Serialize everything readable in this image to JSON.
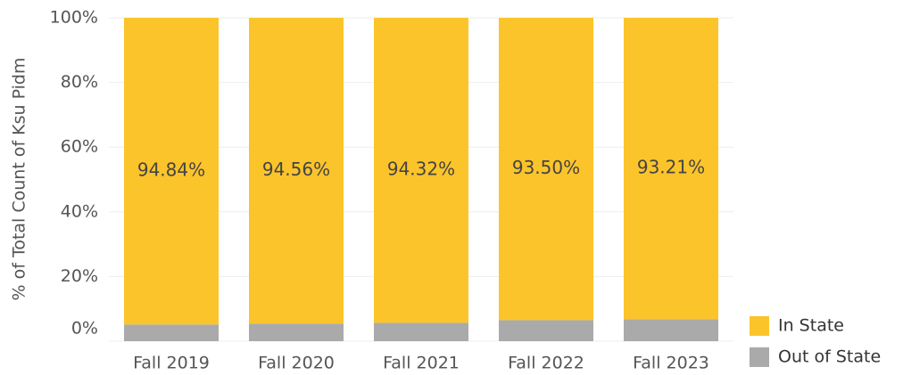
{
  "chart_data": {
    "type": "stacked_bar",
    "y_axis_label": "% of Total Count of Ksu Pidm",
    "categories": [
      "Fall 2019",
      "Fall 2020",
      "Fall 2021",
      "Fall 2022",
      "Fall 2023"
    ],
    "series": [
      {
        "name": "In State",
        "color": "#fcc42b",
        "values": [
          94.84,
          94.56,
          94.32,
          93.5,
          93.21
        ],
        "value_labels": [
          "94.84%",
          "94.56%",
          "94.32%",
          "93.50%",
          "93.21%"
        ]
      },
      {
        "name": "Out of State",
        "color": "#aaaaaa",
        "values": [
          5.16,
          5.44,
          5.68,
          6.5,
          6.79
        ]
      }
    ],
    "ylim": [
      0,
      100
    ],
    "yticks": [
      {
        "value": 0,
        "label": "0%"
      },
      {
        "value": 20,
        "label": "20%"
      },
      {
        "value": 40,
        "label": "40%"
      },
      {
        "value": 60,
        "label": "60%"
      },
      {
        "value": 80,
        "label": "80%"
      },
      {
        "value": 100,
        "label": "100%"
      }
    ],
    "grid": true,
    "legend": "bottom-right"
  }
}
